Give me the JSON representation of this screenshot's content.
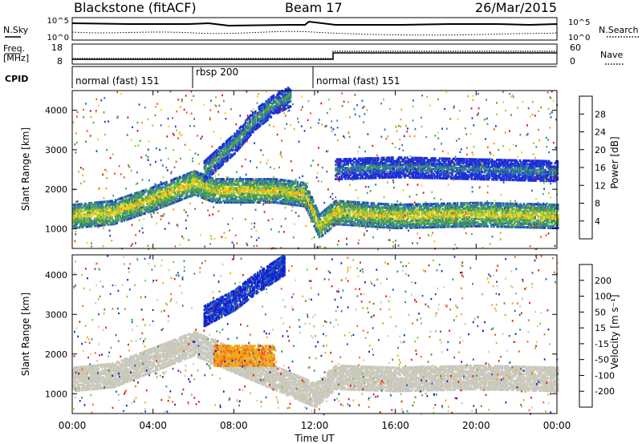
{
  "header": {
    "station": "Blackstone (fitACF)",
    "beam": "Beam 17",
    "date": "26/Mar/2015"
  },
  "top_panels": {
    "nsky_label": "N.Sky",
    "nsearch_label": "N.Search",
    "count_ticks_left": [
      "10^5",
      "10^0"
    ],
    "count_ticks_right": [
      "10^5",
      "10^0"
    ],
    "freq_label_line1": "Freq.",
    "freq_label_line2": "[MHz]",
    "freq_ticks": [
      "18",
      "8"
    ],
    "nave_label": "Nave",
    "nave_ticks": [
      "60",
      "0"
    ],
    "cpid_label": "CPID",
    "cpid_segments": [
      {
        "label": "normal (fast) 151",
        "start_hour": 0
      },
      {
        "label": "rbsp 200",
        "start_hour": 6
      },
      {
        "label": "normal (fast) 151",
        "start_hour": 12
      }
    ]
  },
  "time_axis": {
    "label": "Time UT",
    "ticks": [
      "00:00",
      "04:00",
      "08:00",
      "12:00",
      "16:00",
      "20:00",
      "00:00"
    ],
    "range_hours": [
      0,
      24
    ]
  },
  "colors": {
    "power_scale": [
      "#1d2fd8",
      "#2466b8",
      "#3c8a7a",
      "#4a9e4e",
      "#8fc43a",
      "#ecd21e",
      "#f09a10",
      "#f05414",
      "#e01010"
    ],
    "velocity_scale": [
      "#1020d0",
      "#2050c0",
      "#3c8c50",
      "#7ec83a",
      "#c8c8c0",
      "#d0c8a8",
      "#f0a818",
      "#f06418",
      "#e81010"
    ]
  },
  "chart_data": [
    {
      "type": "heatmap",
      "quantity": "power",
      "ylabel": "Slant Range [km]",
      "xlabel": "",
      "yticks": [
        1000,
        2000,
        3000,
        4000
      ],
      "ylim": [
        500,
        4500
      ],
      "colorbar": {
        "label": "Power [dB]",
        "ticks": [
          "4",
          "8",
          "12",
          "16",
          "20",
          "24",
          "28"
        ],
        "range": [
          0,
          32
        ]
      },
      "features": [
        {
          "name": "main band",
          "x_hours": [
            0,
            2,
            4,
            6,
            7,
            10,
            11.5,
            12.2,
            13,
            16,
            20,
            24
          ],
          "y_km": [
            1350,
            1450,
            1800,
            2200,
            2000,
            2000,
            1900,
            1100,
            1450,
            1350,
            1400,
            1350
          ],
          "level_db": 20
        },
        {
          "name": "high range streak",
          "x_hours": [
            6.5,
            8,
            9,
            10,
            10.8
          ],
          "y_km": [
            2500,
            3200,
            3800,
            4200,
            4400
          ],
          "level_db": 10
        },
        {
          "name": "far range band",
          "x_hours": [
            13,
            16,
            20,
            24
          ],
          "y_km": [
            2550,
            2600,
            2550,
            2500
          ],
          "level_db": 8
        }
      ]
    },
    {
      "type": "heatmap",
      "quantity": "velocity",
      "ylabel": "Slant Range [km]",
      "xlabel": "Time UT",
      "yticks": [
        1000,
        2000,
        3000,
        4000
      ],
      "ylim": [
        500,
        4500
      ],
      "colorbar": {
        "label": "Velocity [m s⁻¹]",
        "ticks": [
          "200",
          "100",
          "50",
          "15",
          "-15",
          "-50",
          "-100",
          "-200"
        ],
        "range": [
          -250,
          250
        ]
      },
      "features": [
        {
          "name": "ground scatter band",
          "x_hours": [
            0,
            2,
            4,
            6,
            12,
            13,
            16,
            20,
            24
          ],
          "y_km": [
            1400,
            1500,
            1900,
            2300,
            1000,
            1450,
            1400,
            1450,
            1400
          ],
          "velocity_ms": 0
        },
        {
          "name": "receding patch",
          "x_hours": [
            7,
            10
          ],
          "y_km": [
            2000,
            2000
          ],
          "velocity_ms": -80
        },
        {
          "name": "approaching streak",
          "x_hours": [
            6.5,
            8,
            9,
            10.5
          ],
          "y_km": [
            3000,
            3400,
            3800,
            4300
          ],
          "velocity_ms": 200
        }
      ]
    }
  ]
}
